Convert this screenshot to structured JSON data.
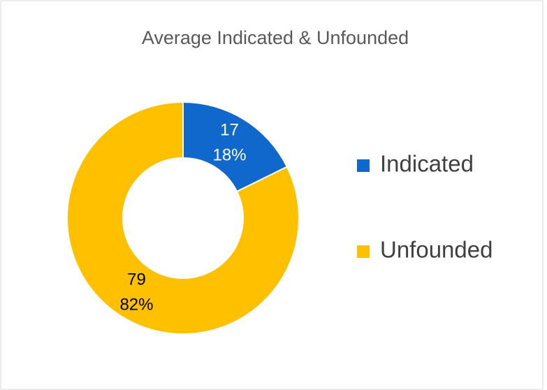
{
  "chart_data": {
    "type": "donut",
    "title": "Average Indicated & Unfounded",
    "categories": [
      "Indicated",
      "Unfounded"
    ],
    "values": [
      17,
      79
    ],
    "percent_labels": [
      "18%",
      "82%"
    ],
    "colors": [
      "#1068cc",
      "#ffc000"
    ],
    "legend": "right"
  }
}
